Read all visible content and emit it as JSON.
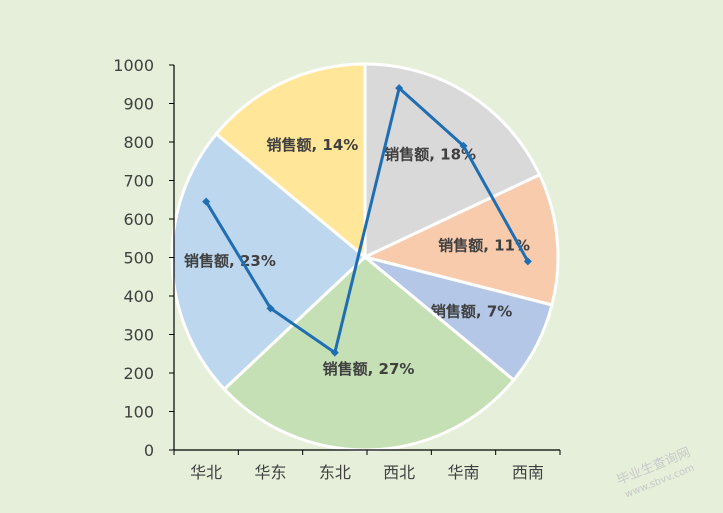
{
  "chart_data": [
    {
      "type": "pie",
      "slices": [
        {
          "label": "销售额, 18%",
          "percent": 18,
          "color": "#d9d9d9"
        },
        {
          "label": "销售额, 11%",
          "percent": 11,
          "color": "#f8cbad"
        },
        {
          "label": "销售额, 7%",
          "percent": 7,
          "color": "#b4c7e7"
        },
        {
          "label": "销售额, 27%",
          "percent": 27,
          "color": "#c5e0b4"
        },
        {
          "label": "销售额, 23%",
          "percent": 23,
          "color": "#bdd7ee"
        },
        {
          "label": "销售额, 14%",
          "percent": 14,
          "color": "#ffe699"
        }
      ]
    },
    {
      "type": "line",
      "categories": [
        "华北",
        "华东",
        "东北",
        "西北",
        "华南",
        "西南"
      ],
      "values": [
        645,
        368,
        253,
        940,
        790,
        490
      ],
      "ylim": [
        0,
        1000
      ],
      "yticks": [
        "0",
        "100",
        "200",
        "300",
        "400",
        "500",
        "600",
        "700",
        "800",
        "900",
        "1000"
      ],
      "line_color": "#1f6eb3"
    }
  ],
  "watermark": {
    "line1": "毕业生查询网",
    "line2": "www.sbvv.com"
  }
}
